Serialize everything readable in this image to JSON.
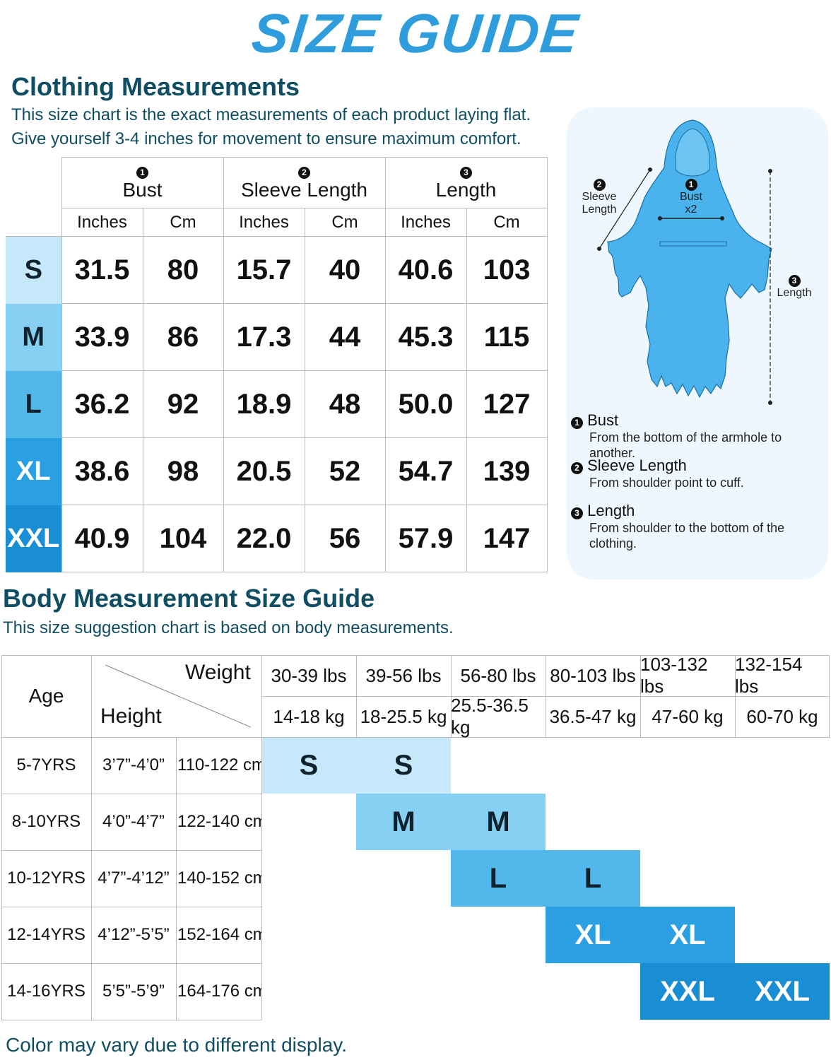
{
  "title": "SIZE GUIDE",
  "clothing": {
    "heading": "Clothing Measurements",
    "sub1": "This size chart is the exact measurements of each product laying flat.",
    "sub2": "Give yourself 3-4 inches for movement to ensure maximum comfort.",
    "columns": [
      {
        "num": "1",
        "label": "Bust"
      },
      {
        "num": "2",
        "label": "Sleeve Length"
      },
      {
        "num": "3",
        "label": "Length"
      }
    ],
    "unit_inches": "Inches",
    "unit_cm": "Cm",
    "rows": [
      {
        "size": "S",
        "cells": [
          "31.5",
          "80",
          "15.7",
          "40",
          "40.6",
          "103"
        ]
      },
      {
        "size": "M",
        "cells": [
          "33.9",
          "86",
          "17.3",
          "44",
          "45.3",
          "115"
        ]
      },
      {
        "size": "L",
        "cells": [
          "36.2",
          "92",
          "18.9",
          "48",
          "50.0",
          "127"
        ]
      },
      {
        "size": "XL",
        "cells": [
          "38.6",
          "98",
          "20.5",
          "52",
          "54.7",
          "139"
        ]
      },
      {
        "size": "XXL",
        "cells": [
          "40.9",
          "104",
          "22.0",
          "56",
          "57.9",
          "147"
        ]
      }
    ]
  },
  "diagram": {
    "sleeve_label": "Sleeve\nLength",
    "bust_label": "Bust",
    "bust_mult": "x2",
    "length_label": "Length",
    "num1": "1",
    "num2": "2",
    "num3": "3"
  },
  "legend": [
    {
      "num": "1",
      "title": "Bust",
      "desc": "From the bottom of the armhole to another."
    },
    {
      "num": "2",
      "title": "Sleeve Length",
      "desc": "From shoulder point to cuff."
    },
    {
      "num": "3",
      "title": "Length",
      "desc": "From shoulder to the bottom of the clothing."
    }
  ],
  "body": {
    "heading": "Body Measurement Size Guide",
    "sub": "This size suggestion chart is based on body measurements.",
    "age_label": "Age",
    "weight_label": "Weight",
    "height_label": "Height",
    "weights_lbs": [
      "30-39 lbs",
      "39-56 lbs",
      "56-80 lbs",
      "80-103 lbs",
      "103-132 lbs",
      "132-154 lbs"
    ],
    "weights_kg": [
      "14-18 kg",
      "18-25.5 kg",
      "25.5-36.5 kg",
      "36.5-47 kg",
      "47-60 kg",
      "60-70 kg"
    ],
    "rows": [
      {
        "age": "5-7YRS",
        "ft": "3’7”-4’0”",
        "cm": "110-122 cm",
        "size": "S"
      },
      {
        "age": "8-10YRS",
        "ft": "4’0”-4’7”",
        "cm": "122-140 cm",
        "size": "M"
      },
      {
        "age": "10-12YRS",
        "ft": "4’7”-4’12”",
        "cm": "140-152 cm",
        "size": "L"
      },
      {
        "age": "12-14YRS",
        "ft": "4’12”-5’5”",
        "cm": "152-164 cm",
        "size": "XL"
      },
      {
        "age": "14-16YRS",
        "ft": "5’5”-5’9”",
        "cm": "164-176 cm",
        "size": "XXL"
      }
    ]
  },
  "footer": "Color may vary due to different display.",
  "colors": {
    "title": "#2f9ddc",
    "heading": "#0f4d63",
    "size_s": "#c6e8fb",
    "size_m": "#86d0f3",
    "size_l": "#52b8ec",
    "size_xl": "#2aa0e2",
    "size_xxl": "#1a8ed5",
    "robe": "#4ab2ec",
    "panel": "#eef7fd"
  }
}
